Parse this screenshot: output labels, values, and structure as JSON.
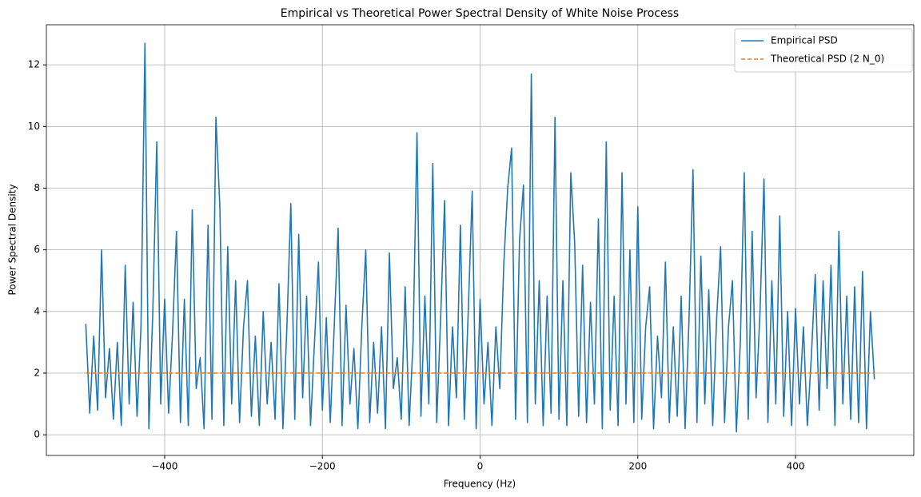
{
  "chart_data": {
    "type": "line",
    "title": "Empirical vs Theoretical Power Spectral Density of White Noise Process",
    "xlabel": "Frequency (Hz)",
    "ylabel": "Power Spectral Density",
    "xlim": [
      -550,
      550
    ],
    "ylim": [
      -0.67,
      13.3
    ],
    "xticks": [
      {
        "value": -400,
        "label": "−400"
      },
      {
        "value": -200,
        "label": "−200"
      },
      0,
      200,
      400
    ],
    "yticks": [
      0,
      2,
      4,
      6,
      8,
      10,
      12
    ],
    "grid": true,
    "legend": "upper right",
    "series": [
      {
        "name": "Empirical PSD",
        "color": "#1f77b4",
        "dash": false,
        "x": [
          -500,
          -495,
          -490,
          -485,
          -480,
          -475,
          -470,
          -465,
          -460,
          -455,
          -450,
          -445,
          -440,
          -435,
          -430,
          -425,
          -420,
          -415,
          -410,
          -405,
          -400,
          -395,
          -390,
          -385,
          -380,
          -375,
          -370,
          -365,
          -360,
          -355,
          -350,
          -345,
          -340,
          -335,
          -330,
          -325,
          -320,
          -315,
          -310,
          -305,
          -300,
          -295,
          -290,
          -285,
          -280,
          -275,
          -270,
          -265,
          -260,
          -255,
          -250,
          -245,
          -240,
          -235,
          -230,
          -225,
          -220,
          -215,
          -210,
          -205,
          -200,
          -195,
          -190,
          -185,
          -180,
          -175,
          -170,
          -165,
          -160,
          -155,
          -150,
          -145,
          -140,
          -135,
          -130,
          -125,
          -120,
          -115,
          -110,
          -105,
          -100,
          -95,
          -90,
          -85,
          -80,
          -75,
          -70,
          -65,
          -60,
          -55,
          -50,
          -45,
          -40,
          -35,
          -30,
          -25,
          -20,
          -15,
          -10,
          -5,
          0,
          5,
          10,
          15,
          20,
          25,
          30,
          35,
          40,
          45,
          50,
          55,
          60,
          65,
          70,
          75,
          80,
          85,
          90,
          95,
          100,
          105,
          110,
          115,
          120,
          125,
          130,
          135,
          140,
          145,
          150,
          155,
          160,
          165,
          170,
          175,
          180,
          185,
          190,
          195,
          200,
          205,
          210,
          215,
          220,
          225,
          230,
          235,
          240,
          245,
          250,
          255,
          260,
          265,
          270,
          275,
          280,
          285,
          290,
          295,
          300,
          305,
          310,
          315,
          320,
          325,
          330,
          335,
          340,
          345,
          350,
          355,
          360,
          365,
          370,
          375,
          380,
          385,
          390,
          395,
          400,
          405,
          410,
          415,
          420,
          425,
          430,
          435,
          440,
          445,
          450,
          455,
          460,
          465,
          470,
          475,
          480,
          485,
          490,
          495,
          500
        ],
        "values": [
          3.6,
          0.7,
          3.2,
          0.8,
          6.0,
          1.2,
          2.8,
          0.5,
          3.0,
          0.3,
          5.5,
          1.0,
          4.3,
          0.6,
          3.5,
          12.7,
          0.2,
          4.0,
          9.5,
          1.0,
          4.4,
          0.7,
          3.3,
          6.6,
          0.4,
          4.4,
          0.3,
          7.3,
          1.5,
          2.5,
          0.2,
          6.8,
          0.5,
          10.3,
          7.4,
          0.3,
          6.1,
          1.0,
          5.0,
          0.4,
          3.5,
          5.0,
          0.6,
          3.2,
          0.3,
          4.0,
          1.0,
          3.0,
          0.5,
          4.9,
          0.2,
          3.5,
          7.5,
          0.5,
          6.5,
          1.2,
          4.5,
          0.3,
          3.0,
          5.6,
          0.8,
          3.8,
          0.4,
          3.5,
          6.7,
          0.3,
          4.2,
          1.0,
          2.8,
          0.2,
          3.5,
          6.0,
          0.4,
          3.0,
          0.7,
          3.5,
          0.2,
          5.9,
          1.5,
          2.5,
          0.5,
          4.8,
          0.3,
          3.0,
          9.8,
          0.6,
          4.5,
          1.0,
          8.8,
          0.4,
          3.8,
          7.6,
          0.3,
          3.5,
          1.2,
          6.8,
          0.5,
          4.0,
          7.9,
          0.2,
          4.4,
          1.0,
          3.0,
          0.3,
          3.5,
          1.5,
          5.5,
          8.0,
          9.3,
          0.5,
          6.3,
          8.1,
          0.4,
          11.7,
          1.0,
          5.0,
          0.3,
          4.5,
          0.7,
          10.3,
          0.5,
          5.0,
          0.3,
          8.5,
          6.2,
          0.6,
          5.5,
          0.4,
          4.3,
          1.0,
          7.0,
          0.2,
          9.5,
          0.8,
          4.5,
          0.3,
          8.5,
          1.0,
          6.0,
          0.4,
          7.4,
          0.5,
          3.5,
          4.8,
          0.2,
          3.2,
          1.2,
          5.6,
          0.4,
          3.5,
          0.6,
          4.5,
          0.2,
          3.8,
          8.6,
          0.4,
          5.8,
          1.0,
          4.7,
          0.3,
          3.8,
          6.1,
          0.4,
          3.5,
          5.0,
          0.1,
          3.0,
          8.5,
          0.5,
          6.6,
          1.2,
          4.0,
          8.3,
          0.4,
          5.0,
          1.0,
          7.1,
          0.6,
          4.0,
          0.3,
          4.1,
          1.0,
          3.5,
          0.3,
          2.5,
          5.2,
          0.8,
          5.0,
          1.5,
          5.5,
          0.3,
          6.6,
          1.0,
          4.5,
          0.5,
          4.8,
          0.4,
          5.3,
          0.2,
          4.0,
          1.8
        ]
      },
      {
        "name": "Theoretical PSD (2 N_0)",
        "color": "#ff7f0e",
        "dash": true,
        "x": [
          -500,
          500
        ],
        "values": [
          2,
          2
        ]
      }
    ]
  }
}
